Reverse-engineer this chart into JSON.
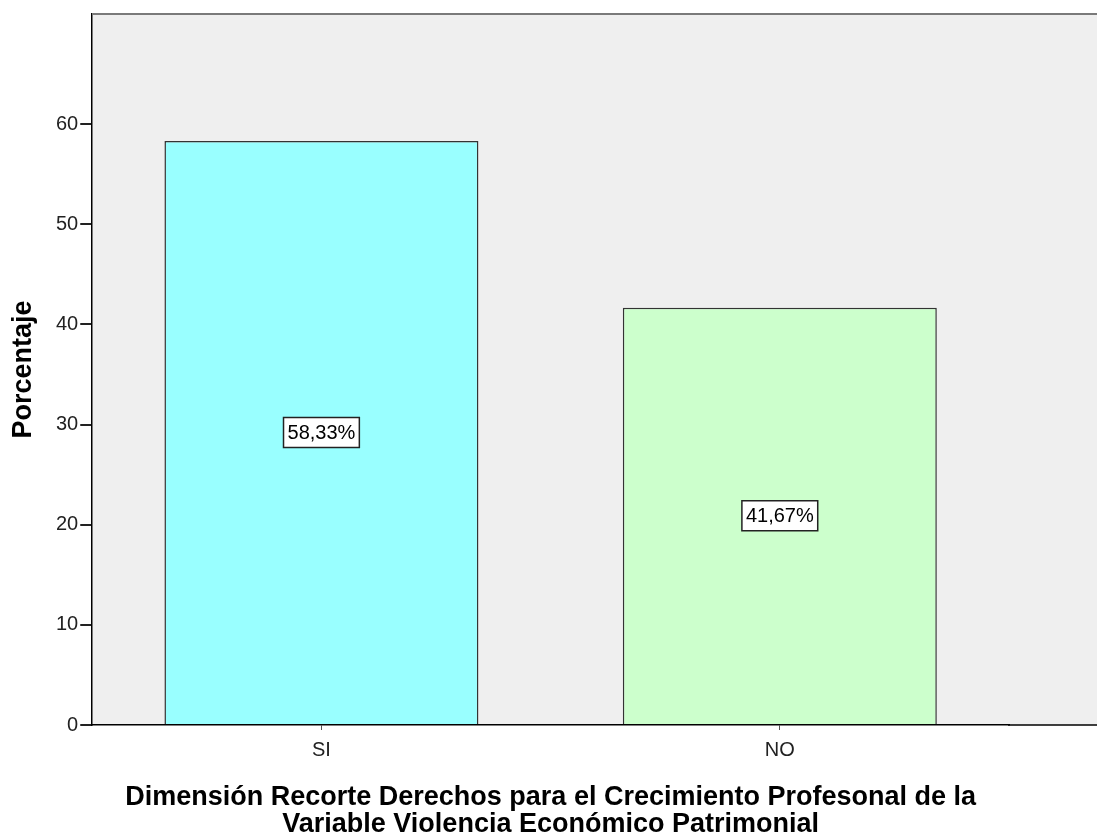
{
  "chart_data": {
    "type": "bar",
    "xlabel": "Dimensión Recorte Derechos para el Crecimiento Profesonal de la Variable Violencia Económico Patrimonial",
    "ylabel": "Porcentaje",
    "categories": [
      "SI",
      "NO"
    ],
    "values": [
      58.33,
      41.67
    ],
    "colors": [
      "#99ffff",
      "#ccffcc"
    ],
    "value_labels": [
      "58,33%",
      "41,67%"
    ],
    "ylim": [
      0,
      71
    ],
    "yticks": [
      0,
      10,
      20,
      30,
      40,
      50,
      60
    ],
    "grid": false,
    "legend": false
  }
}
